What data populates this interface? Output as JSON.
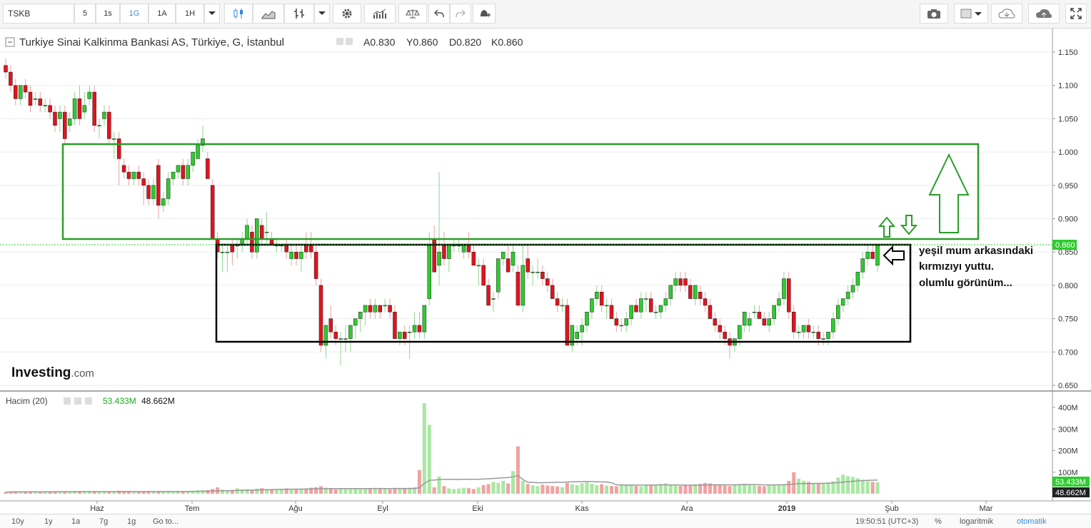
{
  "toolbar": {
    "symbol": "TSKB",
    "intervals": [
      "5",
      "1s",
      "1G",
      "1A",
      "1H"
    ],
    "active_interval": "1G"
  },
  "header": {
    "title": "Turkiye Sinai Kalkinma Bankasi AS, Türkiye, G, İstanbul",
    "open": "A0.830",
    "high": "Y0.860",
    "low": "D0.820",
    "close": "K0.860"
  },
  "volume_header": {
    "label": "Hacim (20)",
    "value1": "53.433M",
    "value2": "48.662M"
  },
  "annotation": {
    "line1": "yeşil mum arkasındaki",
    "line2": "kırmızıyı yuttu.",
    "line3": "olumlu görünüm..."
  },
  "logo": {
    "main": "Investing",
    "suffix": ".com"
  },
  "bottombar": {
    "ranges": [
      "10y",
      "1y",
      "1a",
      "7g",
      "1g",
      "Go to..."
    ],
    "time": "19:50:51 (UTC+3)",
    "percent": "%",
    "log": "logaritmik",
    "auto": "otomatik"
  },
  "colors": {
    "up": "#2ecc2e",
    "down": "#e3121c",
    "up_vol": "#a9e8a2",
    "down_vol": "#f0a2a2",
    "green_box": "#2a9d2a",
    "black_box": "#000000",
    "last_price": "#2ecc2e"
  },
  "chart_data": {
    "type": "candlestick",
    "title": "Turkiye Sinai Kalkinma Bankasi AS",
    "price_axis": {
      "min": 0.65,
      "max": 1.15,
      "ticks": [
        "1.150",
        "1.100",
        "1.050",
        "1.000",
        "0.950",
        "0.900",
        "0.850",
        "0.800",
        "0.750",
        "0.700",
        "0.650"
      ]
    },
    "last_price": "0.860",
    "x_labels": [
      "Haz",
      "Tem",
      "Ağu",
      "Eyl",
      "Eki",
      "Kas",
      "Ara",
      "2019",
      "Şub",
      "Mar"
    ],
    "volume_axis": {
      "ticks": [
        "400M",
        "300M",
        "200M",
        "100M"
      ]
    },
    "volume_values": [
      "53.433M",
      "48.662M"
    ],
    "candles": [
      [
        1.13,
        1.14,
        1.11,
        1.12
      ],
      [
        1.12,
        1.13,
        1.09,
        1.1
      ],
      [
        1.1,
        1.11,
        1.07,
        1.08
      ],
      [
        1.08,
        1.1,
        1.07,
        1.1
      ],
      [
        1.1,
        1.11,
        1.08,
        1.09
      ],
      [
        1.09,
        1.1,
        1.06,
        1.07
      ],
      [
        1.08,
        1.09,
        1.07,
        1.08
      ],
      [
        1.08,
        1.09,
        1.06,
        1.07
      ],
      [
        1.07,
        1.08,
        1.06,
        1.07
      ],
      [
        1.07,
        1.08,
        1.05,
        1.06
      ],
      [
        1.06,
        1.07,
        1.03,
        1.04
      ],
      [
        1.05,
        1.07,
        1.03,
        1.06
      ],
      [
        1.06,
        1.07,
        1.01,
        1.02
      ],
      [
        1.04,
        1.06,
        1.03,
        1.05
      ],
      [
        1.05,
        1.09,
        1.04,
        1.08
      ],
      [
        1.08,
        1.1,
        1.04,
        1.05
      ],
      [
        1.06,
        1.09,
        1.05,
        1.07
      ],
      [
        1.08,
        1.1,
        1.07,
        1.09
      ],
      [
        1.09,
        1.1,
        1.03,
        1.04
      ],
      [
        1.04,
        1.05,
        1.02,
        1.04
      ],
      [
        1.05,
        1.07,
        1.04,
        1.06
      ],
      [
        1.06,
        1.07,
        1.01,
        1.02
      ],
      [
        1.02,
        1.03,
        0.99,
        1.02
      ],
      [
        1.02,
        1.03,
        0.95,
        0.99
      ],
      [
        0.98,
        0.99,
        0.96,
        0.97
      ],
      [
        0.97,
        0.98,
        0.95,
        0.96
      ],
      [
        0.96,
        0.97,
        0.95,
        0.97
      ],
      [
        0.97,
        0.98,
        0.95,
        0.96
      ],
      [
        0.96,
        0.97,
        0.92,
        0.95
      ],
      [
        0.95,
        0.96,
        0.92,
        0.93
      ],
      [
        0.93,
        0.96,
        0.92,
        0.95
      ],
      [
        0.98,
        0.99,
        0.9,
        0.92
      ],
      [
        0.92,
        0.94,
        0.91,
        0.93
      ],
      [
        0.93,
        0.97,
        0.92,
        0.96
      ],
      [
        0.96,
        0.97,
        0.95,
        0.97
      ],
      [
        0.97,
        0.98,
        0.96,
        0.98
      ],
      [
        0.98,
        0.99,
        0.95,
        0.96
      ],
      [
        0.96,
        0.99,
        0.95,
        0.98
      ],
      [
        0.98,
        1.0,
        0.97,
        1.0
      ],
      [
        0.99,
        1.02,
        0.99,
        1.01
      ],
      [
        1.01,
        1.04,
        1.0,
        1.02
      ],
      [
        0.99,
        1.0,
        0.96,
        0.96
      ],
      [
        0.95,
        0.96,
        0.87,
        0.87
      ],
      [
        0.87,
        0.88,
        0.84,
        0.85
      ],
      [
        0.85,
        0.86,
        0.82,
        0.85
      ],
      [
        0.85,
        0.86,
        0.82,
        0.85
      ],
      [
        0.86,
        0.87,
        0.83,
        0.85
      ],
      [
        0.86,
        0.87,
        0.84,
        0.86
      ],
      [
        0.86,
        0.88,
        0.85,
        0.87
      ],
      [
        0.87,
        0.9,
        0.86,
        0.89
      ],
      [
        0.88,
        0.89,
        0.84,
        0.85
      ],
      [
        0.85,
        0.9,
        0.84,
        0.9
      ],
      [
        0.89,
        0.9,
        0.86,
        0.87
      ],
      [
        0.88,
        0.91,
        0.86,
        0.88
      ],
      [
        0.87,
        0.88,
        0.86,
        0.86
      ],
      [
        0.86,
        0.87,
        0.85,
        0.86
      ],
      [
        0.86,
        0.86,
        0.85,
        0.86
      ],
      [
        0.86,
        0.87,
        0.84,
        0.85
      ],
      [
        0.84,
        0.86,
        0.83,
        0.85
      ],
      [
        0.85,
        0.86,
        0.83,
        0.84
      ],
      [
        0.84,
        0.86,
        0.82,
        0.85
      ],
      [
        0.86,
        0.88,
        0.84,
        0.85
      ],
      [
        0.86,
        0.88,
        0.84,
        0.85
      ],
      [
        0.85,
        0.86,
        0.8,
        0.81
      ],
      [
        0.8,
        0.81,
        0.7,
        0.71
      ],
      [
        0.71,
        0.74,
        0.69,
        0.74
      ],
      [
        0.75,
        0.77,
        0.72,
        0.73
      ],
      [
        0.73,
        0.74,
        0.71,
        0.72
      ],
      [
        0.72,
        0.73,
        0.68,
        0.72
      ],
      [
        0.72,
        0.74,
        0.7,
        0.72
      ],
      [
        0.72,
        0.74,
        0.7,
        0.74
      ],
      [
        0.74,
        0.75,
        0.72,
        0.75
      ],
      [
        0.75,
        0.76,
        0.73,
        0.76
      ],
      [
        0.76,
        0.77,
        0.74,
        0.77
      ],
      [
        0.77,
        0.78,
        0.75,
        0.76
      ],
      [
        0.76,
        0.78,
        0.75,
        0.77
      ],
      [
        0.77,
        0.77,
        0.75,
        0.76
      ],
      [
        0.77,
        0.78,
        0.76,
        0.77
      ],
      [
        0.77,
        0.78,
        0.75,
        0.76
      ],
      [
        0.76,
        0.77,
        0.72,
        0.72
      ],
      [
        0.72,
        0.73,
        0.71,
        0.73
      ],
      [
        0.73,
        0.74,
        0.71,
        0.72
      ],
      [
        0.73,
        0.74,
        0.69,
        0.73
      ],
      [
        0.73,
        0.76,
        0.72,
        0.74
      ],
      [
        0.74,
        0.76,
        0.72,
        0.73
      ],
      [
        0.73,
        0.77,
        0.72,
        0.77
      ],
      [
        0.78,
        0.88,
        0.77,
        0.86
      ],
      [
        0.87,
        0.89,
        0.82,
        0.82
      ],
      [
        0.83,
        0.97,
        0.8,
        0.85
      ],
      [
        0.86,
        0.88,
        0.83,
        0.84
      ],
      [
        0.84,
        0.86,
        0.82,
        0.86
      ],
      [
        0.86,
        0.87,
        0.85,
        0.86
      ],
      [
        0.86,
        0.87,
        0.85,
        0.86
      ],
      [
        0.85,
        0.86,
        0.84,
        0.86
      ],
      [
        0.86,
        0.88,
        0.84,
        0.85
      ],
      [
        0.85,
        0.86,
        0.83,
        0.83
      ],
      [
        0.83,
        0.84,
        0.8,
        0.83
      ],
      [
        0.83,
        0.84,
        0.8,
        0.8
      ],
      [
        0.8,
        0.81,
        0.77,
        0.77
      ],
      [
        0.78,
        0.79,
        0.76,
        0.78
      ],
      [
        0.79,
        0.84,
        0.78,
        0.84
      ],
      [
        0.84,
        0.85,
        0.83,
        0.85
      ],
      [
        0.84,
        0.86,
        0.82,
        0.82
      ],
      [
        0.83,
        0.86,
        0.82,
        0.85
      ],
      [
        0.82,
        0.83,
        0.77,
        0.77
      ],
      [
        0.77,
        0.86,
        0.76,
        0.83
      ],
      [
        0.84,
        0.86,
        0.81,
        0.82
      ],
      [
        0.82,
        0.83,
        0.8,
        0.82
      ],
      [
        0.82,
        0.84,
        0.81,
        0.82
      ],
      [
        0.82,
        0.83,
        0.8,
        0.81
      ],
      [
        0.81,
        0.82,
        0.79,
        0.8
      ],
      [
        0.8,
        0.81,
        0.78,
        0.78
      ],
      [
        0.78,
        0.79,
        0.76,
        0.77
      ],
      [
        0.77,
        0.78,
        0.76,
        0.77
      ],
      [
        0.77,
        0.78,
        0.71,
        0.71
      ],
      [
        0.71,
        0.74,
        0.7,
        0.74
      ],
      [
        0.72,
        0.74,
        0.71,
        0.73
      ],
      [
        0.73,
        0.75,
        0.71,
        0.74
      ],
      [
        0.74,
        0.76,
        0.73,
        0.76
      ],
      [
        0.76,
        0.78,
        0.75,
        0.78
      ],
      [
        0.78,
        0.8,
        0.77,
        0.79
      ],
      [
        0.79,
        0.8,
        0.76,
        0.77
      ],
      [
        0.77,
        0.78,
        0.75,
        0.77
      ],
      [
        0.77,
        0.78,
        0.75,
        0.75
      ],
      [
        0.75,
        0.76,
        0.73,
        0.74
      ],
      [
        0.74,
        0.75,
        0.73,
        0.74
      ],
      [
        0.74,
        0.76,
        0.73,
        0.75
      ],
      [
        0.75,
        0.77,
        0.74,
        0.77
      ],
      [
        0.77,
        0.78,
        0.76,
        0.76
      ],
      [
        0.76,
        0.79,
        0.75,
        0.78
      ],
      [
        0.78,
        0.79,
        0.76,
        0.78
      ],
      [
        0.78,
        0.79,
        0.76,
        0.76
      ],
      [
        0.76,
        0.77,
        0.75,
        0.76
      ],
      [
        0.76,
        0.77,
        0.75,
        0.77
      ],
      [
        0.77,
        0.79,
        0.76,
        0.78
      ],
      [
        0.78,
        0.8,
        0.77,
        0.8
      ],
      [
        0.8,
        0.82,
        0.79,
        0.81
      ],
      [
        0.81,
        0.82,
        0.79,
        0.8
      ],
      [
        0.81,
        0.82,
        0.79,
        0.8
      ],
      [
        0.8,
        0.81,
        0.78,
        0.78
      ],
      [
        0.78,
        0.8,
        0.77,
        0.8
      ],
      [
        0.79,
        0.8,
        0.77,
        0.78
      ],
      [
        0.78,
        0.79,
        0.76,
        0.77
      ],
      [
        0.77,
        0.78,
        0.75,
        0.75
      ],
      [
        0.75,
        0.76,
        0.73,
        0.74
      ],
      [
        0.74,
        0.75,
        0.72,
        0.73
      ],
      [
        0.73,
        0.74,
        0.71,
        0.72
      ],
      [
        0.72,
        0.73,
        0.69,
        0.71
      ],
      [
        0.71,
        0.72,
        0.7,
        0.72
      ],
      [
        0.72,
        0.74,
        0.71,
        0.74
      ],
      [
        0.74,
        0.76,
        0.73,
        0.76
      ],
      [
        0.74,
        0.76,
        0.73,
        0.75
      ],
      [
        0.76,
        0.77,
        0.75,
        0.76
      ],
      [
        0.76,
        0.77,
        0.75,
        0.75
      ],
      [
        0.75,
        0.76,
        0.74,
        0.74
      ],
      [
        0.74,
        0.76,
        0.73,
        0.75
      ],
      [
        0.75,
        0.77,
        0.74,
        0.77
      ],
      [
        0.77,
        0.79,
        0.76,
        0.78
      ],
      [
        0.78,
        0.82,
        0.77,
        0.81
      ],
      [
        0.81,
        0.82,
        0.75,
        0.76
      ],
      [
        0.76,
        0.77,
        0.72,
        0.73
      ],
      [
        0.73,
        0.74,
        0.72,
        0.73
      ],
      [
        0.73,
        0.74,
        0.72,
        0.74
      ],
      [
        0.74,
        0.75,
        0.72,
        0.73
      ],
      [
        0.73,
        0.74,
        0.72,
        0.73
      ],
      [
        0.73,
        0.74,
        0.71,
        0.72
      ],
      [
        0.72,
        0.73,
        0.71,
        0.72
      ],
      [
        0.72,
        0.73,
        0.71,
        0.73
      ],
      [
        0.73,
        0.76,
        0.72,
        0.75
      ],
      [
        0.75,
        0.78,
        0.74,
        0.77
      ],
      [
        0.77,
        0.78,
        0.76,
        0.78
      ],
      [
        0.78,
        0.8,
        0.77,
        0.79
      ],
      [
        0.79,
        0.81,
        0.78,
        0.8
      ],
      [
        0.8,
        0.82,
        0.79,
        0.82
      ],
      [
        0.82,
        0.85,
        0.81,
        0.84
      ],
      [
        0.84,
        0.86,
        0.83,
        0.85
      ],
      [
        0.85,
        0.86,
        0.84,
        0.84
      ],
      [
        0.83,
        0.86,
        0.82,
        0.86
      ]
    ],
    "volumes": [
      8,
      9,
      10,
      8,
      9,
      10,
      9,
      8,
      10,
      9,
      12,
      11,
      10,
      9,
      13,
      12,
      10,
      9,
      11,
      10,
      9,
      10,
      12,
      14,
      10,
      9,
      8,
      10,
      9,
      11,
      12,
      10,
      9,
      11,
      10,
      12,
      11,
      13,
      14,
      16,
      18,
      17,
      22,
      30,
      20,
      15,
      18,
      25,
      20,
      22,
      19,
      24,
      26,
      22,
      20,
      21,
      23,
      25,
      22,
      20,
      21,
      24,
      28,
      30,
      35,
      28,
      22,
      20,
      24,
      22,
      21,
      23,
      25,
      22,
      24,
      26,
      24,
      22,
      20,
      24,
      23,
      25,
      28,
      30,
      110,
      420,
      320,
      30,
      80,
      35,
      25,
      22,
      24,
      28,
      26,
      22,
      30,
      40,
      45,
      55,
      50,
      60,
      48,
      105,
      220,
      60,
      45,
      40,
      35,
      42,
      38,
      36,
      34,
      30,
      50,
      45,
      40,
      48,
      52,
      46,
      40,
      44,
      38,
      36,
      35,
      40,
      42,
      38,
      36,
      34,
      38,
      40,
      42,
      45,
      48,
      40,
      38,
      36,
      40,
      42,
      44,
      46,
      50,
      48,
      44,
      40,
      38,
      36,
      42,
      44,
      46,
      40,
      38,
      36,
      34,
      40,
      38,
      42,
      45,
      60,
      100,
      70,
      60,
      55,
      50,
      48,
      46,
      52,
      58,
      75,
      88,
      82,
      78,
      72,
      65,
      58,
      55,
      53
    ]
  }
}
